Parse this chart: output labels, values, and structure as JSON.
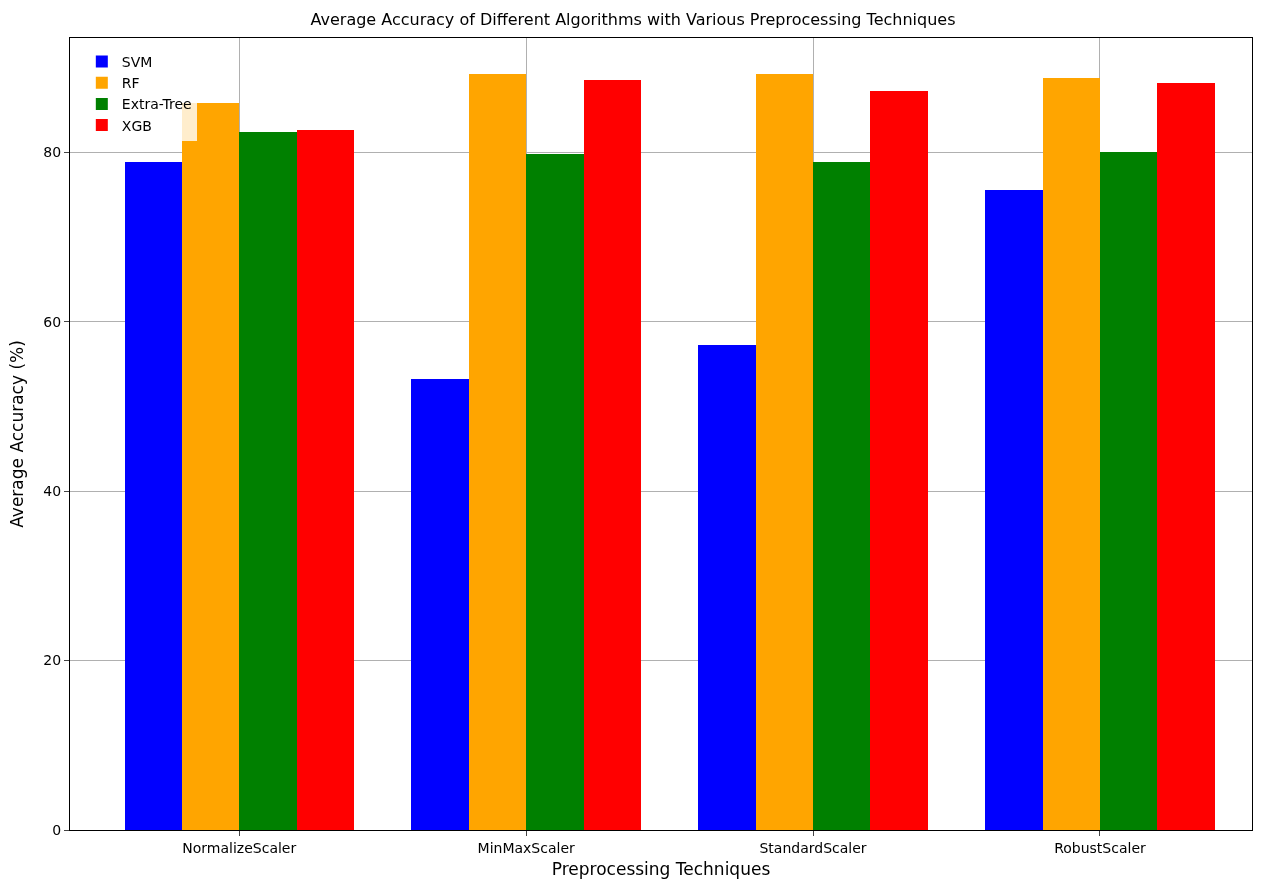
{
  "chart_data": {
    "type": "bar",
    "title": "Average Accuracy of Different Algorithms with Various Preprocessing Techniques",
    "xlabel": "Preprocessing Techniques",
    "ylabel": "Average Accuracy (%)",
    "categories": [
      "NormalizeScaler",
      "MinMaxScaler",
      "StandardScaler",
      "RobustScaler"
    ],
    "series": [
      {
        "name": "SVM",
        "color": "#0000ff",
        "values": [
          78.9,
          53.3,
          57.3,
          75.6
        ]
      },
      {
        "name": "RF",
        "color": "#ffa500",
        "values": [
          85.8,
          89.2,
          89.2,
          88.8
        ]
      },
      {
        "name": "Extra-Tree",
        "color": "#008000",
        "values": [
          82.4,
          79.8,
          78.9,
          80.0
        ]
      },
      {
        "name": "XGB",
        "color": "#ff0000",
        "values": [
          82.6,
          88.6,
          87.2,
          88.2
        ]
      }
    ],
    "ylim": [
      0,
      93.5
    ],
    "yticks": [
      0,
      20,
      40,
      60,
      80
    ],
    "grid": true,
    "legend": "top left"
  }
}
